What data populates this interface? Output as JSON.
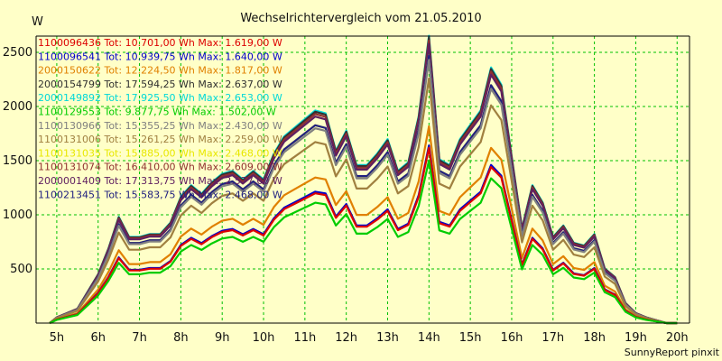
{
  "chart_data": {
    "type": "line",
    "title": "Wechselrichtervergleich vom 21.05.2010",
    "unit_label": "W",
    "footer": "SunnyReport pinxit",
    "xlim": [
      4.5,
      20.3
    ],
    "ylim": [
      0,
      2650
    ],
    "y_ticks": [
      500,
      1000,
      1500,
      2000,
      2500
    ],
    "x_tick_labels": [
      "5h",
      "6h",
      "7h",
      "8h",
      "9h",
      "10h",
      "11h",
      "12h",
      "13h",
      "14h",
      "15h",
      "16h",
      "17h",
      "18h",
      "19h",
      "20h"
    ],
    "x_ticks": [
      5,
      6,
      7,
      8,
      9,
      10,
      11,
      12,
      13,
      14,
      15,
      16,
      17,
      18,
      19,
      20
    ],
    "grid": true,
    "legend_position": "top-left",
    "base_profile": {
      "x": [
        4.83,
        5.0,
        5.25,
        5.5,
        5.75,
        6.0,
        6.25,
        6.5,
        6.75,
        7.0,
        7.25,
        7.5,
        7.75,
        8.0,
        8.25,
        8.5,
        8.75,
        9.0,
        9.25,
        9.5,
        9.75,
        10.0,
        10.25,
        10.5,
        10.75,
        11.0,
        11.25,
        11.5,
        11.75,
        12.0,
        12.25,
        12.5,
        12.75,
        13.0,
        13.25,
        13.5,
        13.75,
        14.0,
        14.25,
        14.5,
        14.75,
        15.0,
        15.25,
        15.5,
        15.75,
        16.0,
        16.25,
        16.5,
        16.75,
        17.0,
        17.25,
        17.5,
        17.75,
        18.0,
        18.25,
        18.5,
        18.75,
        19.0,
        19.25,
        19.5,
        19.75,
        20.0
      ],
      "y": [
        0.0,
        0.02,
        0.035,
        0.05,
        0.11,
        0.17,
        0.26,
        0.37,
        0.3,
        0.3,
        0.31,
        0.31,
        0.35,
        0.44,
        0.48,
        0.45,
        0.49,
        0.52,
        0.53,
        0.5,
        0.53,
        0.5,
        0.59,
        0.65,
        0.68,
        0.71,
        0.74,
        0.73,
        0.6,
        0.67,
        0.55,
        0.55,
        0.59,
        0.64,
        0.53,
        0.56,
        0.72,
        1.0,
        0.57,
        0.55,
        0.64,
        0.69,
        0.74,
        0.89,
        0.83,
        0.58,
        0.33,
        0.48,
        0.42,
        0.3,
        0.34,
        0.28,
        0.27,
        0.31,
        0.19,
        0.16,
        0.07,
        0.035,
        0.02,
        0.01,
        0.0,
        0.0
      ]
    },
    "series": [
      {
        "serial": "1100096436",
        "legend": "1100096436 Tot: 10.701,00 Wh Max: 1.619,00 W",
        "max": 1619,
        "color": "#dd0000"
      },
      {
        "serial": "1100096541",
        "legend": "1100096541 Tot: 10.939,75 Wh Max: 1.640,00 W",
        "max": 1640,
        "color": "#0000cc"
      },
      {
        "serial": "2000150622",
        "legend": "2000150622 Tot: 12.224,50 Wh Max: 1.817,00 W",
        "max": 1817,
        "color": "#e08000"
      },
      {
        "serial": "2000154799",
        "legend": "2000154799 Tot: 17.594,25 Wh Max: 2.637,00 W",
        "max": 2637,
        "color": "#303030"
      },
      {
        "serial": "2000149892",
        "legend": "2000149892 Tot: 17.925,50 Wh Max: 2.653,00 W",
        "max": 2653,
        "color": "#00d8d8"
      },
      {
        "serial": "1100129553",
        "legend": "1100129553 Tot: 9.877,75 Wh Max: 1.502,00 W",
        "max": 1502,
        "color": "#00cc00"
      },
      {
        "serial": "1100130966",
        "legend": "1100130966 Tot: 15.355,25 Wh Max: 2.430,00 W",
        "max": 2430,
        "color": "#808080"
      },
      {
        "serial": "1100131006",
        "legend": "1100131006 Tot: 15.261,25 Wh Max: 2.259,00 W",
        "max": 2259,
        "color": "#a08040"
      },
      {
        "serial": "1100131035",
        "legend": "1100131035 Tot: 15.885,00 Wh Max: 2.468,00 W",
        "max": 2468,
        "color": "#e8e800"
      },
      {
        "serial": "1100131074",
        "legend": "1100131074 Tot: 16.410,00 Wh Max: 2.609,00 W",
        "max": 2609,
        "color": "#903030"
      },
      {
        "serial": "2000001409",
        "legend": "2000001409 Tot: 17.313,75 Wh Max: 2.577,00 W",
        "max": 2577,
        "color": "#602060"
      },
      {
        "serial": "1100213451",
        "legend": "1100213451 Tot: 15.583,75 Wh Max: 2.468,00 W",
        "max": 2468,
        "color": "#202080"
      }
    ]
  },
  "colors": {
    "background": "#ffffc8",
    "grid": "#00c000",
    "axis": "#000000"
  }
}
